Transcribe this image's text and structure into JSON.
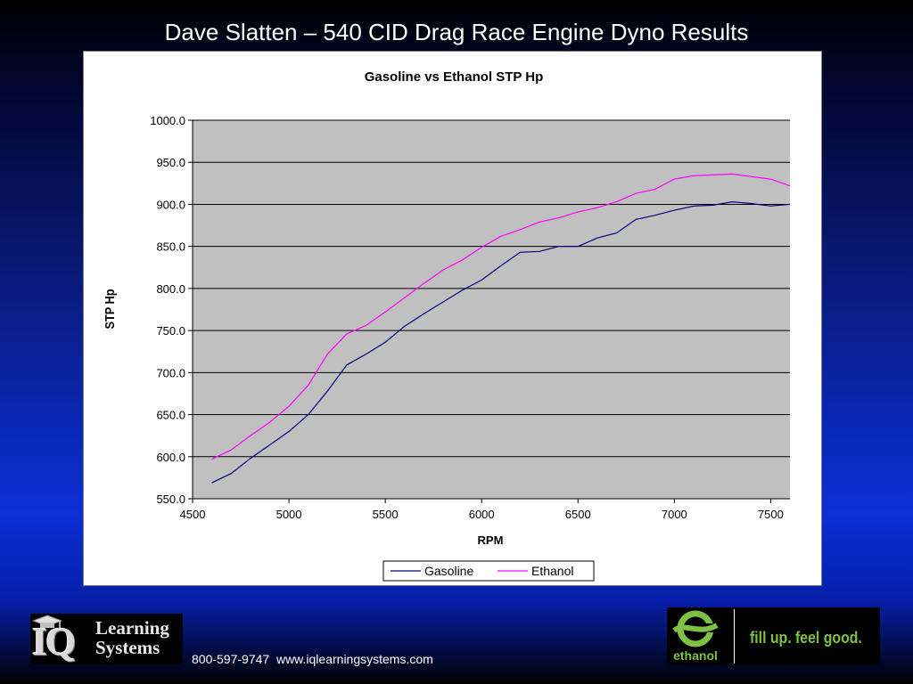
{
  "slide": {
    "title": "Dave Slatten – 540 CID Drag Race Engine Dyno Results",
    "contact": "800-597-9747  www.iqlearningsystems.com",
    "left_logo": {
      "mark": "IQ",
      "line1": "Learning",
      "line2": "Systems",
      "icon": "graduation-cap-icon"
    },
    "right_logo": {
      "word": "ethanol",
      "slogan": "fill up. feel good.",
      "icon": "ethanol-e-icon",
      "color": "#7ec142"
    }
  },
  "chart_data": {
    "type": "line",
    "title": "Gasoline vs Ethanol STP Hp",
    "xlabel": "RPM",
    "ylabel": "STP Hp",
    "xlim": [
      4500,
      7600
    ],
    "ylim": [
      550,
      1000
    ],
    "x_ticks": [
      "4500",
      "5000",
      "5500",
      "6000",
      "6500",
      "7000",
      "7500"
    ],
    "y_ticks": [
      "550.0",
      "600.0",
      "650.0",
      "700.0",
      "750.0",
      "800.0",
      "850.0",
      "900.0",
      "950.0",
      "1000.0"
    ],
    "grid": true,
    "plot_background": "#c0c0c0",
    "legend_position": "bottom",
    "series": [
      {
        "name": "Gasoline",
        "color": "#000080",
        "x": [
          4600,
          4700,
          4800,
          4900,
          5000,
          5100,
          5200,
          5300,
          5400,
          5500,
          5600,
          5700,
          5800,
          5900,
          6000,
          6100,
          6200,
          6300,
          6400,
          6500,
          6600,
          6700,
          6800,
          6900,
          7000,
          7100,
          7200,
          7300,
          7400,
          7500,
          7600
        ],
        "y": [
          569,
          580,
          598,
          614,
          630,
          650,
          678,
          709,
          722,
          736,
          755,
          770,
          784,
          798,
          810,
          827,
          843,
          844,
          850,
          850,
          860,
          866,
          882,
          887,
          893,
          898,
          899,
          903,
          901,
          898,
          900
        ]
      },
      {
        "name": "Ethanol",
        "color": "#ff00ff",
        "x": [
          4600,
          4700,
          4800,
          4900,
          5000,
          5100,
          5200,
          5300,
          5400,
          5500,
          5600,
          5700,
          5800,
          5900,
          6000,
          6100,
          6200,
          6300,
          6400,
          6500,
          6600,
          6700,
          6800,
          6900,
          7000,
          7100,
          7200,
          7300,
          7400,
          7500,
          7600
        ],
        "y": [
          597,
          608,
          625,
          641,
          660,
          685,
          722,
          746,
          756,
          772,
          789,
          806,
          822,
          834,
          849,
          862,
          870,
          879,
          884,
          891,
          896,
          903,
          913,
          918,
          930,
          934,
          935,
          936,
          933,
          930,
          922
        ]
      }
    ]
  }
}
